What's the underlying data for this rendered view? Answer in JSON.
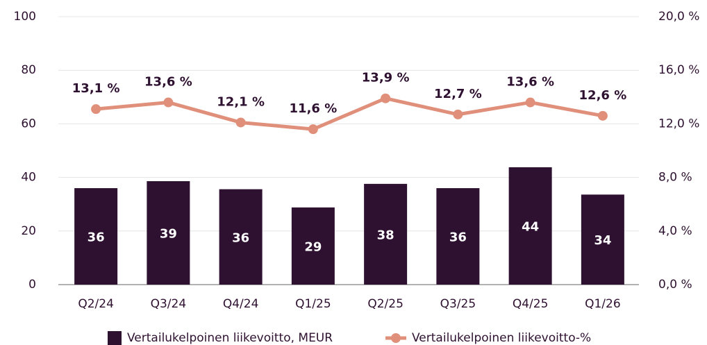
{
  "chart_data": {
    "type": "bar_line",
    "categories": [
      "Q2/24",
      "Q3/24",
      "Q4/24",
      "Q1/25",
      "Q2/25",
      "Q3/25",
      "Q4/25",
      "Q1/26"
    ],
    "series": [
      {
        "name": "Vertailukelpoinen liikevoitto, MEUR",
        "color": "#2e1130",
        "type": "bar",
        "values": [
          36.0,
          38.6,
          35.6,
          28.8,
          37.6,
          36.0,
          43.8,
          33.6
        ],
        "value_labels": [
          "36",
          "39",
          "36",
          "29",
          "38",
          "36",
          "44",
          "34"
        ]
      },
      {
        "name": "Vertailukelpoinen liikevoitto-%",
        "color": "#e0907a",
        "type": "line",
        "axis": "y2",
        "values": [
          13.1,
          13.6,
          12.1,
          11.6,
          13.9,
          12.7,
          13.6,
          12.6
        ],
        "value_labels": [
          "13,1 %",
          "13,6 %",
          "12,1 %",
          "11,6 %",
          "13,9 %",
          "12,7 %",
          "13,6 %",
          "12,6 %"
        ]
      }
    ],
    "ylim": [
      0,
      100
    ],
    "yticks": [
      0,
      20,
      40,
      60,
      80,
      100
    ],
    "y2lim": [
      0,
      20
    ],
    "y2ticks": [
      {
        "value": 0,
        "label": "0,0 %"
      },
      {
        "value": 4,
        "label": "4,0 %"
      },
      {
        "value": 8,
        "label": "8,0 %"
      },
      {
        "value": 12,
        "label": "12,0 %"
      },
      {
        "value": 16,
        "label": "16,0 %"
      },
      {
        "value": 20,
        "label": "20,0 %"
      }
    ],
    "grid": true,
    "legend": "bottom"
  }
}
